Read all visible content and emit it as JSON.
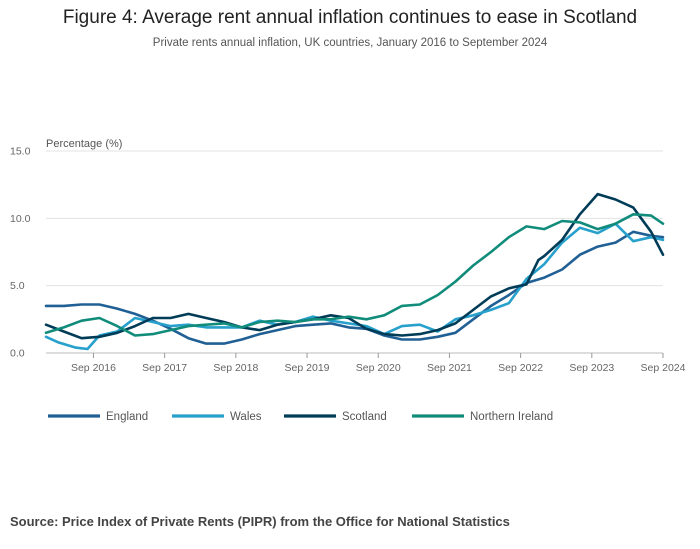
{
  "title": "Figure 4: Average rent annual inflation continues to ease in Scotland",
  "subtitle": "Private rents annual inflation, UK countries, January 2016 to September 2024",
  "source": "Source: Price Index of Private Rents (PIPR) from the Office for National Statistics",
  "chart_data": {
    "type": "line",
    "ylabel": "Percentage (%)",
    "xlabel": "",
    "ylim": [
      0,
      15
    ],
    "yticks": [
      0,
      5,
      10,
      15
    ],
    "ytick_labels": [
      "0.0",
      "5.0",
      "10.0",
      "15.0"
    ],
    "xlim": [
      "2016-01",
      "2024-09"
    ],
    "xtick_dates": [
      "2016-09",
      "2017-09",
      "2018-09",
      "2019-09",
      "2020-09",
      "2021-09",
      "2022-09",
      "2023-09",
      "2024-09"
    ],
    "xtick_labels": [
      "Sep 2016",
      "Sep 2017",
      "Sep 2018",
      "Sep 2019",
      "Sep 2020",
      "Sep 2021",
      "Sep 2022",
      "Sep 2023",
      "Sep 2024"
    ],
    "grid": true,
    "legend_position": "bottom",
    "series": [
      {
        "name": "England",
        "color": "#206095",
        "points": [
          [
            "2016-01",
            3.5
          ],
          [
            "2016-04",
            3.5
          ],
          [
            "2016-07",
            3.6
          ],
          [
            "2016-10",
            3.6
          ],
          [
            "2017-01",
            3.3
          ],
          [
            "2017-04",
            2.9
          ],
          [
            "2017-07",
            2.4
          ],
          [
            "2017-10",
            1.8
          ],
          [
            "2018-01",
            1.1
          ],
          [
            "2018-04",
            0.7
          ],
          [
            "2018-07",
            0.7
          ],
          [
            "2018-10",
            1.0
          ],
          [
            "2019-01",
            1.4
          ],
          [
            "2019-04",
            1.7
          ],
          [
            "2019-07",
            2.0
          ],
          [
            "2019-10",
            2.1
          ],
          [
            "2020-01",
            2.2
          ],
          [
            "2020-04",
            1.9
          ],
          [
            "2020-07",
            1.8
          ],
          [
            "2020-10",
            1.3
          ],
          [
            "2021-01",
            1.0
          ],
          [
            "2021-04",
            1.0
          ],
          [
            "2021-07",
            1.2
          ],
          [
            "2021-10",
            1.5
          ],
          [
            "2022-01",
            2.5
          ],
          [
            "2022-04",
            3.5
          ],
          [
            "2022-07",
            4.3
          ],
          [
            "2022-10",
            5.2
          ],
          [
            "2023-01",
            5.6
          ],
          [
            "2023-04",
            6.2
          ],
          [
            "2023-07",
            7.3
          ],
          [
            "2023-10",
            7.9
          ],
          [
            "2024-01",
            8.2
          ],
          [
            "2024-04",
            9.0
          ],
          [
            "2024-07",
            8.7
          ],
          [
            "2024-09",
            8.6
          ]
        ]
      },
      {
        "name": "Wales",
        "color": "#27a0cc",
        "points": [
          [
            "2016-01",
            1.2
          ],
          [
            "2016-03",
            0.8
          ],
          [
            "2016-06",
            0.4
          ],
          [
            "2016-08",
            0.3
          ],
          [
            "2016-10",
            1.3
          ],
          [
            "2017-01",
            1.6
          ],
          [
            "2017-04",
            2.6
          ],
          [
            "2017-07",
            2.3
          ],
          [
            "2017-10",
            2.0
          ],
          [
            "2018-01",
            2.1
          ],
          [
            "2018-04",
            1.9
          ],
          [
            "2018-07",
            1.9
          ],
          [
            "2018-10",
            1.9
          ],
          [
            "2019-01",
            2.4
          ],
          [
            "2019-04",
            2.1
          ],
          [
            "2019-07",
            2.3
          ],
          [
            "2019-10",
            2.7
          ],
          [
            "2020-01",
            2.4
          ],
          [
            "2020-04",
            2.2
          ],
          [
            "2020-07",
            2.0
          ],
          [
            "2020-10",
            1.4
          ],
          [
            "2021-01",
            2.0
          ],
          [
            "2021-04",
            2.1
          ],
          [
            "2021-07",
            1.6
          ],
          [
            "2021-10",
            2.5
          ],
          [
            "2022-01",
            2.8
          ],
          [
            "2022-04",
            3.2
          ],
          [
            "2022-07",
            3.7
          ],
          [
            "2022-10",
            5.5
          ],
          [
            "2023-01",
            6.6
          ],
          [
            "2023-04",
            8.2
          ],
          [
            "2023-07",
            9.3
          ],
          [
            "2023-10",
            8.9
          ],
          [
            "2024-01",
            9.6
          ],
          [
            "2024-04",
            8.3
          ],
          [
            "2024-07",
            8.6
          ],
          [
            "2024-09",
            8.4
          ]
        ]
      },
      {
        "name": "Scotland",
        "color": "#003c57",
        "points": [
          [
            "2016-01",
            2.1
          ],
          [
            "2016-04",
            1.6
          ],
          [
            "2016-07",
            1.1
          ],
          [
            "2016-10",
            1.2
          ],
          [
            "2017-01",
            1.5
          ],
          [
            "2017-04",
            2.0
          ],
          [
            "2017-07",
            2.6
          ],
          [
            "2017-10",
            2.6
          ],
          [
            "2018-01",
            2.9
          ],
          [
            "2018-04",
            2.6
          ],
          [
            "2018-07",
            2.3
          ],
          [
            "2018-10",
            1.9
          ],
          [
            "2019-01",
            1.7
          ],
          [
            "2019-04",
            2.1
          ],
          [
            "2019-07",
            2.3
          ],
          [
            "2019-10",
            2.5
          ],
          [
            "2020-01",
            2.8
          ],
          [
            "2020-04",
            2.6
          ],
          [
            "2020-07",
            1.8
          ],
          [
            "2020-10",
            1.4
          ],
          [
            "2021-01",
            1.3
          ],
          [
            "2021-04",
            1.4
          ],
          [
            "2021-07",
            1.7
          ],
          [
            "2021-10",
            2.2
          ],
          [
            "2022-01",
            3.2
          ],
          [
            "2022-04",
            4.2
          ],
          [
            "2022-07",
            4.8
          ],
          [
            "2022-10",
            5.1
          ],
          [
            "2022-12",
            6.9
          ],
          [
            "2023-01",
            7.2
          ],
          [
            "2023-04",
            8.4
          ],
          [
            "2023-07",
            10.3
          ],
          [
            "2023-10",
            11.8
          ],
          [
            "2024-01",
            11.4
          ],
          [
            "2024-04",
            10.8
          ],
          [
            "2024-07",
            9.0
          ],
          [
            "2024-09",
            7.3
          ]
        ]
      },
      {
        "name": "Northern Ireland",
        "color": "#118c7b",
        "points": [
          [
            "2016-01",
            1.5
          ],
          [
            "2016-04",
            1.9
          ],
          [
            "2016-07",
            2.4
          ],
          [
            "2016-10",
            2.6
          ],
          [
            "2017-01",
            2.0
          ],
          [
            "2017-04",
            1.3
          ],
          [
            "2017-07",
            1.4
          ],
          [
            "2017-10",
            1.7
          ],
          [
            "2018-01",
            2.0
          ],
          [
            "2018-04",
            2.1
          ],
          [
            "2018-07",
            2.2
          ],
          [
            "2018-10",
            1.9
          ],
          [
            "2019-01",
            2.3
          ],
          [
            "2019-04",
            2.4
          ],
          [
            "2019-07",
            2.3
          ],
          [
            "2019-10",
            2.5
          ],
          [
            "2020-01",
            2.5
          ],
          [
            "2020-04",
            2.7
          ],
          [
            "2020-07",
            2.5
          ],
          [
            "2020-10",
            2.8
          ],
          [
            "2021-01",
            3.5
          ],
          [
            "2021-04",
            3.6
          ],
          [
            "2021-07",
            4.3
          ],
          [
            "2021-10",
            5.3
          ],
          [
            "2022-01",
            6.5
          ],
          [
            "2022-04",
            7.5
          ],
          [
            "2022-07",
            8.6
          ],
          [
            "2022-10",
            9.4
          ],
          [
            "2023-01",
            9.2
          ],
          [
            "2023-04",
            9.8
          ],
          [
            "2023-07",
            9.7
          ],
          [
            "2023-10",
            9.2
          ],
          [
            "2024-01",
            9.6
          ],
          [
            "2024-04",
            10.3
          ],
          [
            "2024-07",
            10.2
          ],
          [
            "2024-09",
            9.6
          ]
        ]
      }
    ]
  }
}
